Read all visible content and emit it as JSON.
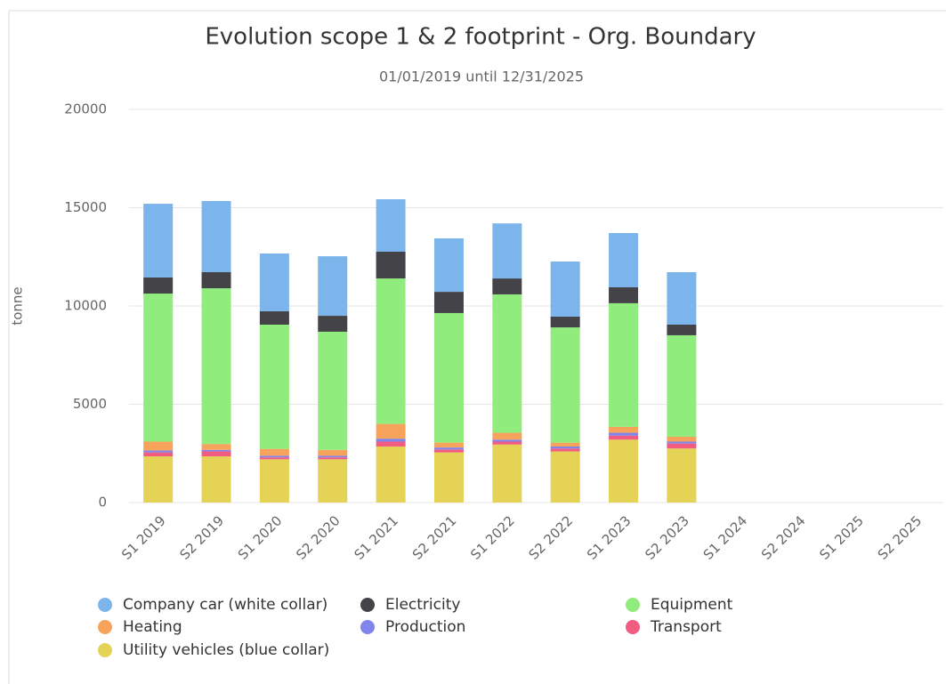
{
  "chart_data": {
    "type": "stacked_bar",
    "title": "Evolution scope 1 & 2 footprint - Org. Boundary",
    "subtitle": "01/01/2019 until 12/31/2025",
    "y_label": "tonne",
    "categories": [
      "S1 2019",
      "S2 2019",
      "S1 2020",
      "S2 2020",
      "S1 2021",
      "S2 2021",
      "S1 2022",
      "S2 2022",
      "S1 2023",
      "S2 2023",
      "S1 2024",
      "S2 2024",
      "S1 2025",
      "S2 2025"
    ],
    "series": [
      {
        "name": "Company car (white collar)",
        "color": "#7cb5ec",
        "values": [
          3750,
          3620,
          2940,
          3030,
          2670,
          2720,
          2800,
          2800,
          2760,
          2670,
          null,
          null,
          null,
          null
        ]
      },
      {
        "name": "Electricity",
        "color": "#434348",
        "values": [
          820,
          820,
          680,
          810,
          1360,
          1080,
          810,
          550,
          810,
          540,
          null,
          null,
          null,
          null
        ]
      },
      {
        "name": "Equipment",
        "color": "#90ed7d",
        "values": [
          7530,
          7920,
          6320,
          6010,
          7400,
          6590,
          7040,
          5860,
          6290,
          5160,
          null,
          null,
          null,
          null
        ]
      },
      {
        "name": "Heating",
        "color": "#f7a35c",
        "values": [
          450,
          300,
          350,
          300,
          750,
          250,
          350,
          200,
          300,
          250,
          null,
          null,
          null,
          null
        ]
      },
      {
        "name": "Production",
        "color": "#8085e9",
        "values": [
          100,
          80,
          80,
          80,
          150,
          100,
          100,
          100,
          150,
          100,
          null,
          null,
          null,
          null
        ]
      },
      {
        "name": "Transport",
        "color": "#f15c80",
        "values": [
          200,
          250,
          100,
          100,
          250,
          150,
          150,
          150,
          200,
          250,
          null,
          null,
          null,
          null
        ]
      },
      {
        "name": "Utility vehicles (blue collar)",
        "color": "#e4d354",
        "values": [
          2350,
          2350,
          2200,
          2200,
          2850,
          2550,
          2950,
          2600,
          3200,
          2750,
          null,
          null,
          null,
          null
        ]
      }
    ],
    "ylim": [
      0,
      20000
    ],
    "yticks": [
      0,
      5000,
      10000,
      15000,
      20000
    ],
    "grid": true
  }
}
